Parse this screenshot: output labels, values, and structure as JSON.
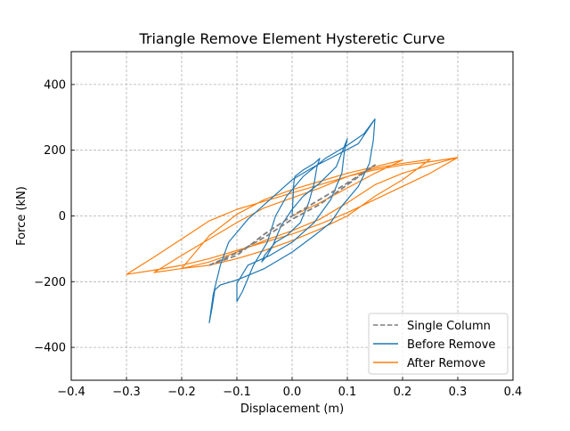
{
  "chart_data": {
    "type": "line",
    "title": "Triangle Remove Element Hysteretic Curve",
    "xlabel": "Displacement (m)",
    "ylabel": "Force (kN)",
    "xlim": [
      -0.4,
      0.4
    ],
    "ylim": [
      -500,
      500
    ],
    "xticks": [
      -0.4,
      -0.3,
      -0.2,
      -0.1,
      0.0,
      0.1,
      0.2,
      0.3,
      0.4
    ],
    "xtick_labels": [
      "−0.4",
      "−0.3",
      "−0.2",
      "−0.1",
      "0.0",
      "0.1",
      "0.2",
      "0.3",
      "0.4"
    ],
    "yticks": [
      -400,
      -200,
      0,
      200,
      400
    ],
    "ytick_labels": [
      "−400",
      "−200",
      "0",
      "200",
      "400"
    ],
    "grid": true,
    "legend_position": "lower-right",
    "series": [
      {
        "name": "Single Column",
        "color": "#7f7f7f",
        "dash": "dashed",
        "points": [
          [
            -0.15,
            -150
          ],
          [
            -0.1,
            -112
          ],
          [
            -0.05,
            -65
          ],
          [
            0.0,
            -10
          ],
          [
            0.05,
            35
          ],
          [
            0.1,
            95
          ],
          [
            0.15,
            155
          ],
          [
            0.1,
            100
          ],
          [
            0.05,
            50
          ],
          [
            0.0,
            0
          ],
          [
            -0.05,
            -55
          ],
          [
            -0.1,
            -120
          ],
          [
            -0.15,
            -150
          ]
        ]
      },
      {
        "name": "Before Remove",
        "color": "#1f77b4",
        "dash": "solid",
        "points": [
          [
            0.0,
            0
          ],
          [
            0.003,
            100
          ],
          [
            0.005,
            120
          ],
          [
            0.02,
            140
          ],
          [
            0.04,
            160
          ],
          [
            0.05,
            175
          ],
          [
            0.045,
            150
          ],
          [
            0.04,
            100
          ],
          [
            0.03,
            40
          ],
          [
            0.015,
            -20
          ],
          [
            -0.01,
            -60
          ],
          [
            -0.03,
            -80
          ],
          [
            -0.04,
            -100
          ],
          [
            -0.05,
            -120
          ],
          [
            -0.055,
            -140
          ],
          [
            -0.045,
            -120
          ],
          [
            -0.035,
            -90
          ],
          [
            -0.02,
            -30
          ],
          [
            0.0,
            20
          ],
          [
            0.02,
            60
          ],
          [
            0.05,
            100
          ],
          [
            0.08,
            150
          ],
          [
            0.1,
            235
          ],
          [
            0.095,
            200
          ],
          [
            0.09,
            130
          ],
          [
            0.07,
            50
          ],
          [
            0.04,
            -20
          ],
          [
            0.0,
            -80
          ],
          [
            -0.04,
            -120
          ],
          [
            -0.08,
            -150
          ],
          [
            -0.1,
            -205
          ],
          [
            -0.1,
            -260
          ],
          [
            -0.09,
            -230
          ],
          [
            -0.07,
            -150
          ],
          [
            -0.045,
            -80
          ],
          [
            -0.03,
            0
          ],
          [
            -0.01,
            60
          ],
          [
            0.02,
            120
          ],
          [
            0.06,
            175
          ],
          [
            0.1,
            215
          ],
          [
            0.13,
            250
          ],
          [
            0.15,
            295
          ],
          [
            0.147,
            230
          ],
          [
            0.14,
            160
          ],
          [
            0.12,
            90
          ],
          [
            0.09,
            30
          ],
          [
            0.07,
            -20
          ],
          [
            0.04,
            -60
          ],
          [
            0.0,
            -110
          ],
          [
            -0.05,
            -160
          ],
          [
            -0.1,
            -195
          ],
          [
            -0.13,
            -210
          ],
          [
            -0.14,
            -225
          ],
          [
            -0.145,
            -280
          ],
          [
            -0.15,
            -325
          ],
          [
            -0.143,
            -240
          ],
          [
            -0.13,
            -150
          ],
          [
            -0.115,
            -80
          ],
          [
            -0.08,
            -10
          ],
          [
            -0.04,
            50
          ],
          [
            0.0,
            110
          ],
          [
            0.04,
            150
          ],
          [
            0.08,
            185
          ],
          [
            0.12,
            220
          ],
          [
            0.15,
            295
          ]
        ]
      },
      {
        "name": "After Remove",
        "color": "#ff7f0e",
        "dash": "solid",
        "points": [
          [
            0.0,
            0
          ],
          [
            0.05,
            40
          ],
          [
            0.1,
            85
          ],
          [
            0.15,
            130
          ],
          [
            0.2,
            170
          ],
          [
            0.15,
            150
          ],
          [
            0.1,
            130
          ],
          [
            0.05,
            105
          ],
          [
            0.0,
            80
          ],
          [
            -0.05,
            50
          ],
          [
            -0.1,
            5
          ],
          [
            -0.15,
            -60
          ],
          [
            -0.2,
            -160
          ],
          [
            -0.15,
            -150
          ],
          [
            -0.1,
            -130
          ],
          [
            -0.05,
            -105
          ],
          [
            0.0,
            -75
          ],
          [
            0.05,
            -40
          ],
          [
            0.1,
            0
          ],
          [
            0.15,
            60
          ],
          [
            0.2,
            110
          ],
          [
            0.25,
            172
          ],
          [
            0.2,
            160
          ],
          [
            0.15,
            145
          ],
          [
            0.1,
            120
          ],
          [
            0.05,
            85
          ],
          [
            0.0,
            55
          ],
          [
            -0.05,
            25
          ],
          [
            -0.1,
            -20
          ],
          [
            -0.15,
            -70
          ],
          [
            -0.2,
            -120
          ],
          [
            -0.25,
            -172
          ],
          [
            -0.2,
            -160
          ],
          [
            -0.15,
            -140
          ],
          [
            -0.1,
            -110
          ],
          [
            -0.05,
            -75
          ],
          [
            0.0,
            -45
          ],
          [
            0.05,
            -10
          ],
          [
            0.1,
            40
          ],
          [
            0.15,
            95
          ],
          [
            0.2,
            130
          ],
          [
            0.25,
            155
          ],
          [
            0.3,
            178
          ],
          [
            0.25,
            165
          ],
          [
            0.2,
            155
          ],
          [
            0.15,
            140
          ],
          [
            0.1,
            120
          ],
          [
            0.05,
            95
          ],
          [
            0.0,
            70
          ],
          [
            -0.05,
            45
          ],
          [
            -0.1,
            20
          ],
          [
            -0.15,
            -15
          ],
          [
            -0.2,
            -70
          ],
          [
            -0.25,
            -125
          ],
          [
            -0.3,
            -178
          ],
          [
            -0.25,
            -165
          ],
          [
            -0.2,
            -150
          ],
          [
            -0.15,
            -130
          ],
          [
            -0.1,
            -105
          ],
          [
            -0.05,
            -80
          ],
          [
            0.0,
            -55
          ],
          [
            0.05,
            -25
          ],
          [
            0.1,
            10
          ],
          [
            0.15,
            50
          ],
          [
            0.2,
            90
          ],
          [
            0.25,
            130
          ],
          [
            0.3,
            178
          ]
        ]
      }
    ]
  }
}
